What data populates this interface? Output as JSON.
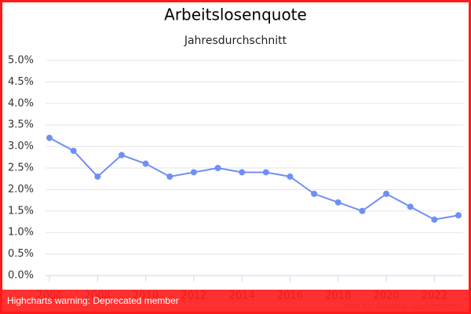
{
  "chart_data": {
    "type": "line",
    "title": "Arbeitslosenquote",
    "subtitle": "Jahresdurchschnitt",
    "x": [
      2006,
      2007,
      2008,
      2009,
      2010,
      2011,
      2012,
      2013,
      2014,
      2015,
      2016,
      2017,
      2018,
      2019,
      2020,
      2021,
      2022,
      2023
    ],
    "series": [
      {
        "color": "#6f8ff5",
        "values": [
          3.2,
          2.9,
          2.3,
          2.8,
          2.6,
          2.3,
          2.4,
          2.5,
          2.4,
          2.4,
          2.3,
          1.9,
          1.7,
          1.5,
          1.9,
          1.6,
          1.3,
          1.4
        ]
      }
    ],
    "xlim": [
      2006,
      2023
    ],
    "xticks": [
      2006,
      2008,
      2010,
      2012,
      2014,
      2016,
      2018,
      2020,
      2022
    ],
    "ylim": [
      0,
      5
    ],
    "yticks": [
      {
        "value": 0,
        "label": "0.0%"
      },
      {
        "value": 0.5,
        "label": "0.5%"
      },
      {
        "value": 1,
        "label": "1.0%"
      },
      {
        "value": 1.5,
        "label": "1.5%"
      },
      {
        "value": 2,
        "label": "2.0%"
      },
      {
        "value": 2.5,
        "label": "2.5%"
      },
      {
        "value": 3,
        "label": "3.0%"
      },
      {
        "value": 3.5,
        "label": "3.5%"
      },
      {
        "value": 4,
        "label": "4.0%"
      },
      {
        "value": 4.5,
        "label": "4.5%"
      },
      {
        "value": 5,
        "label": "5.0%"
      }
    ],
    "grid": true,
    "credits": "Amt für Statistik Liechtenstein",
    "warning": "Highcharts warning: Deprecated member"
  }
}
